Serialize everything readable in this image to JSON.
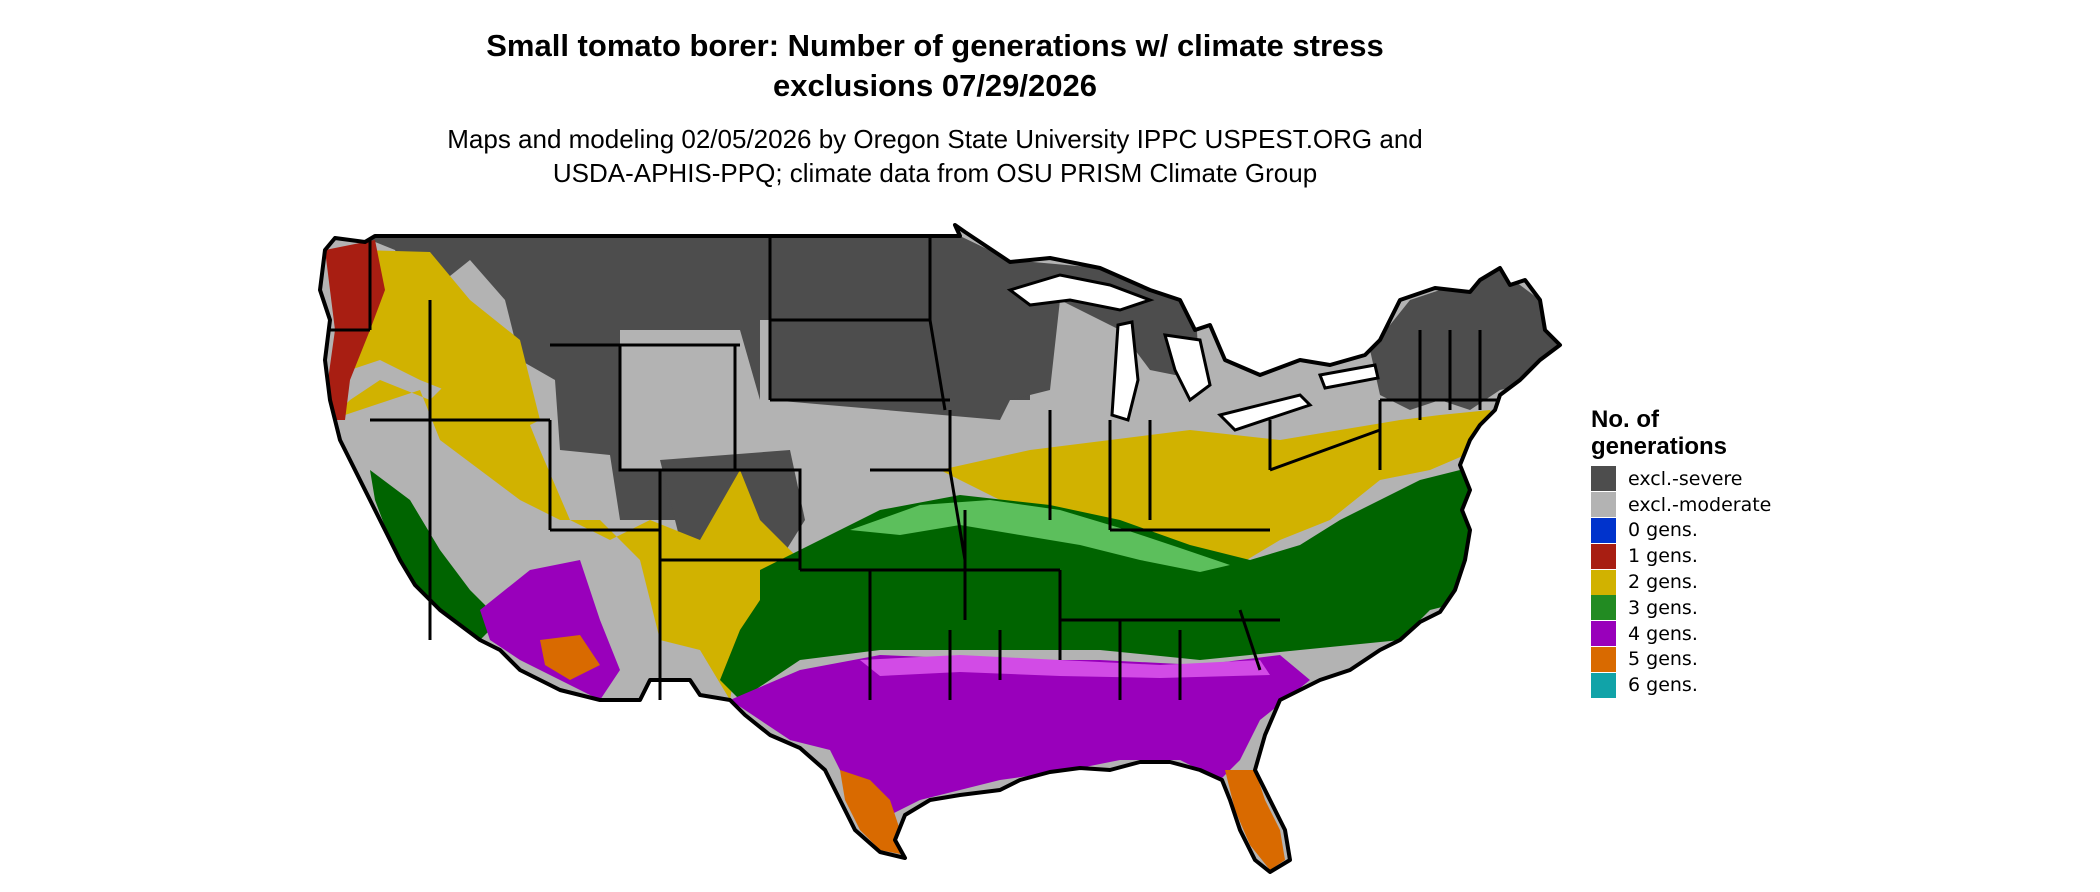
{
  "map": {
    "title_line1": "Small tomato borer: Number of generations w/ climate stress",
    "title_line2": "exclusions 07/29/2026",
    "subtitle_line1": "Maps and modeling 02/05/2026 by Oregon State University IPPC USPEST.ORG and",
    "subtitle_line2": "USDA-APHIS-PPQ; climate data from OSU PRISM Climate Group"
  },
  "legend": {
    "title_line1": "No. of",
    "title_line2": "generations",
    "items": [
      {
        "label": "excl.-severe",
        "color": "#4d4d4d"
      },
      {
        "label": "excl.-moderate",
        "color": "#b3b3b3"
      },
      {
        "label": "0 gens.",
        "color": "#0033cc"
      },
      {
        "label": "1 gens.",
        "color": "#a81e12"
      },
      {
        "label": "2 gens.",
        "color": "#d1b200"
      },
      {
        "label": "3 gens.",
        "color": "#228b22"
      },
      {
        "label": "4 gens.",
        "color": "#9900bb"
      },
      {
        "label": "5 gens.",
        "color": "#d96a00"
      },
      {
        "label": "6 gens.",
        "color": "#11a3a8"
      }
    ]
  },
  "colors": {
    "severe": "#4d4d4d",
    "moderate": "#b3b3b3",
    "one_gen": "#a81e12",
    "two_gen": "#d1b200",
    "three_gen": "#006400",
    "three_gen_light": "#5cbf5c",
    "four_gen": "#9900bb",
    "four_gen_light": "#d24be6",
    "five_gen": "#d96a00",
    "six_gen": "#11a3a8",
    "border": "#000000"
  }
}
